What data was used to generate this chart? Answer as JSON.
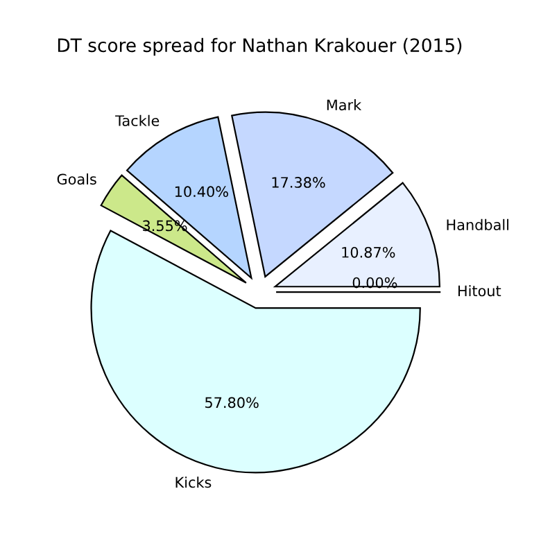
{
  "chart_data": {
    "type": "pie",
    "title": "DT score spread for Nathan Krakouer (2015)",
    "categories": [
      "Hitout",
      "Handball",
      "Mark",
      "Tackle",
      "Goals",
      "Kicks"
    ],
    "values": [
      0.0,
      10.87,
      17.38,
      10.4,
      3.55,
      57.8
    ],
    "value_labels": [
      "0.00%",
      "10.87%",
      "17.38%",
      "10.40%",
      "3.55%",
      "57.80%"
    ],
    "colors": [
      "#f0f0ff",
      "#e8f0ff",
      "#c5d8ff",
      "#b5d5ff",
      "#cce88a",
      "#dcffff"
    ]
  }
}
